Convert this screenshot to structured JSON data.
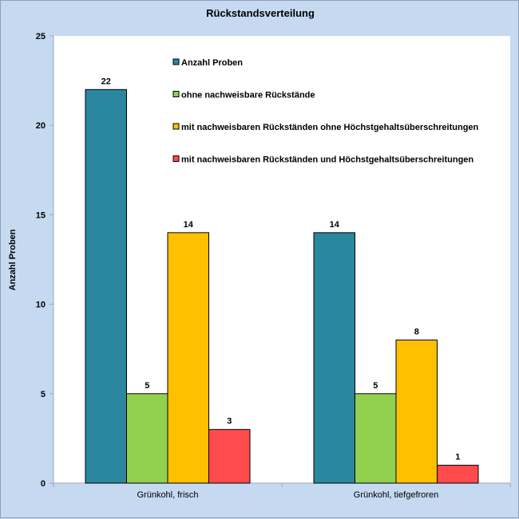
{
  "chart_data": {
    "type": "bar",
    "title": "Rückstandsverteilung",
    "xlabel": "",
    "ylabel": "Anzahl Proben",
    "ylim": [
      0,
      25
    ],
    "yticks": [
      0,
      5,
      10,
      15,
      20,
      25
    ],
    "grid": false,
    "legend_position": "top-center",
    "categories": [
      "Grünkohl, frisch",
      "Grünkohl, tiefgefroren"
    ],
    "series": [
      {
        "name": "Anzahl Proben",
        "color": "#2A879F",
        "values": [
          22,
          14
        ]
      },
      {
        "name": "ohne nachweisbare Rückstände",
        "color": "#92D050",
        "values": [
          5,
          5
        ]
      },
      {
        "name": "mit nachweisbaren Rückständen ohne Höchstgehaltsüberschreitungen",
        "color": "#FFC000",
        "values": [
          14,
          8
        ]
      },
      {
        "name": "mit nachweisbaren Rückständen und Höchstgehaltsüberschreitungen",
        "color": "#FF4B4B",
        "values": [
          3,
          1
        ]
      }
    ]
  }
}
